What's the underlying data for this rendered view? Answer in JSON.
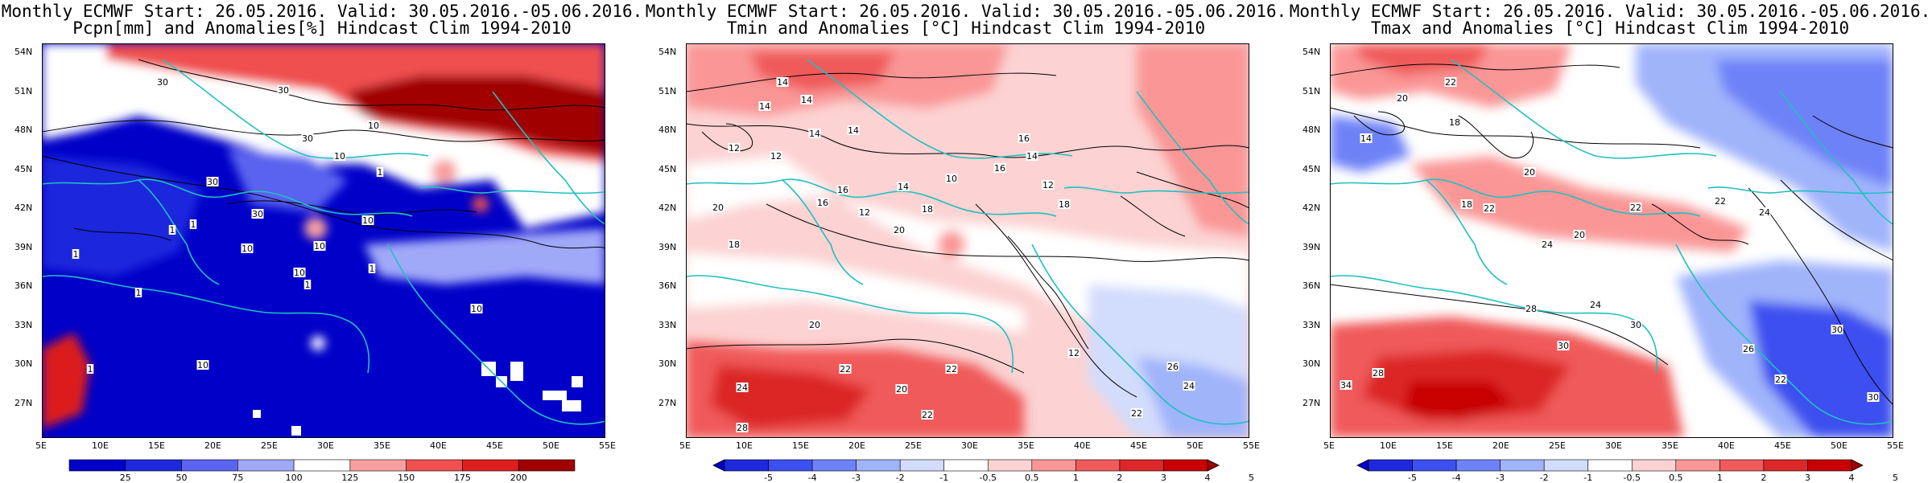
{
  "panels": [
    {
      "id": "precip",
      "title_line1": "Monthly ECMWF Start: 26.05.2016. Valid: 30.05.2016.-05.06.2016.",
      "title_line2": "Pcpn[mm] and Anomalies[%] Hindcast Clim 1994-2010",
      "colorbar": {
        "triangles": false,
        "labels": [
          "25",
          "50",
          "75",
          "100",
          "125",
          "150",
          "175",
          "200"
        ],
        "colors": [
          "#0000c8",
          "#1e28dc",
          "#5a64f0",
          "#a0a8f8",
          "#ffffff",
          "#f8a0a0",
          "#f05050",
          "#dc1e1e",
          "#a00000"
        ]
      },
      "contour_labels": [
        "30",
        "30",
        "30",
        "10",
        "10",
        "30",
        "30",
        "1",
        "10",
        "10",
        "1",
        "10",
        "1",
        "10",
        "1",
        "1",
        "10",
        "10",
        "1",
        "1",
        "1"
      ]
    },
    {
      "id": "tmin",
      "title_line1": "Monthly ECMWF Start: 26.05.2016. Valid: 30.05.2016.-05.06.2016.",
      "title_line2": "Tmin and Anomalies [°C] Hindcast Clim 1994-2010",
      "colorbar": {
        "triangles": true,
        "labels": [
          "-5",
          "-4",
          "-3",
          "-2",
          "-1",
          "-0.5",
          "0.5",
          "1",
          "2",
          "3",
          "4",
          "5"
        ],
        "colors": [
          "#0000c8",
          "#1e28dc",
          "#3c50f0",
          "#6e82f8",
          "#a0b4fa",
          "#d2dcfc",
          "#ffffff",
          "#fcd2d2",
          "#fa9696",
          "#f05a5a",
          "#dc2828",
          "#c80000",
          "#a00000"
        ]
      },
      "contour_labels": [
        "14",
        "14",
        "12",
        "14",
        "14",
        "12",
        "16",
        "14",
        "10",
        "12",
        "14",
        "16",
        "18",
        "18",
        "20",
        "16",
        "12",
        "20",
        "18",
        "22",
        "22",
        "20",
        "24",
        "28",
        "22",
        "24",
        "20",
        "22",
        "26",
        "12",
        "16",
        "14"
      ]
    },
    {
      "id": "tmax",
      "title_line1": "Monthly ECMWF Start: 26.05.2016. Valid: 30.05.2016.-05.06.2016.",
      "title_line2": "Tmax and Anomalies [°C] Hindcast Clim 1994-2010",
      "colorbar": {
        "triangles": true,
        "labels": [
          "-5",
          "-4",
          "-3",
          "-2",
          "-1",
          "-0.5",
          "0.5",
          "1",
          "2",
          "3",
          "4",
          "5"
        ],
        "colors": [
          "#0000c8",
          "#1e28dc",
          "#3c50f0",
          "#6e82f8",
          "#a0b4fa",
          "#d2dcfc",
          "#ffffff",
          "#fcd2d2",
          "#fa9696",
          "#f05a5a",
          "#dc2828",
          "#c80000",
          "#a00000"
        ]
      },
      "contour_labels": [
        "22",
        "20",
        "20",
        "22",
        "18",
        "14",
        "18",
        "22",
        "24",
        "22",
        "20",
        "24",
        "28",
        "30",
        "34",
        "28",
        "30",
        "24",
        "26",
        "22",
        "30",
        "30"
      ]
    }
  ],
  "lat_labels": [
    "54N",
    "51N",
    "48N",
    "45N",
    "42N",
    "39N",
    "36N",
    "33N",
    "30N",
    "27N"
  ],
  "lon_labels": [
    "5E",
    "10E",
    "15E",
    "20E",
    "25E",
    "30E",
    "35E",
    "40E",
    "45E",
    "50E",
    "55E"
  ]
}
